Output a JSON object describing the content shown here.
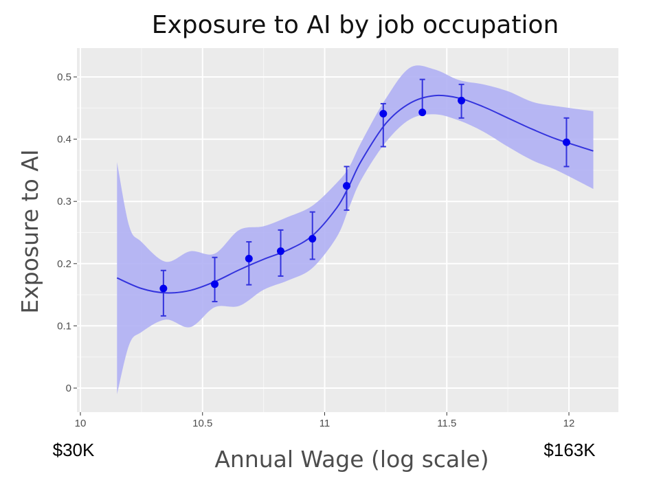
{
  "chart_data": {
    "type": "line",
    "title": "Exposure to AI by job occupation",
    "xlabel": "Annual Wage (log scale)",
    "ylabel": "Exposure to AI",
    "xlim": [
      10.0,
      12.2
    ],
    "ylim": [
      -0.04,
      0.55
    ],
    "x_ticks": [
      10,
      10.5,
      11,
      11.5,
      12
    ],
    "x_tick_labels": [
      "10",
      "10.5",
      "11",
      "11.5",
      "12"
    ],
    "y_ticks": [
      0,
      0.1,
      0.2,
      0.3,
      0.4,
      0.5
    ],
    "y_tick_labels": [
      "0",
      "0.1",
      "0.2",
      "0.3",
      "0.4",
      "0.5"
    ],
    "grid": true,
    "annotations": [
      {
        "text": "$30K",
        "x": 10.0
      },
      {
        "text": "$163K",
        "x": 12.0
      }
    ],
    "colors": {
      "points": "#0000ee",
      "line": "#3333dd",
      "band": "#b0b0f4",
      "panel": "#ebebeb",
      "grid": "#ffffff"
    },
    "points": [
      {
        "x": 10.34,
        "y": 0.16,
        "lo": 0.116,
        "hi": 0.189
      },
      {
        "x": 10.55,
        "y": 0.167,
        "lo": 0.139,
        "hi": 0.21
      },
      {
        "x": 10.69,
        "y": 0.208,
        "lo": 0.166,
        "hi": 0.235
      },
      {
        "x": 10.82,
        "y": 0.22,
        "lo": 0.18,
        "hi": 0.254
      },
      {
        "x": 10.95,
        "y": 0.24,
        "lo": 0.207,
        "hi": 0.283
      },
      {
        "x": 11.09,
        "y": 0.325,
        "lo": 0.286,
        "hi": 0.356
      },
      {
        "x": 11.24,
        "y": 0.441,
        "lo": 0.388,
        "hi": 0.457
      },
      {
        "x": 11.4,
        "y": 0.443,
        "lo": 0.443,
        "hi": 0.496
      },
      {
        "x": 11.56,
        "y": 0.462,
        "lo": 0.434,
        "hi": 0.488
      },
      {
        "x": 11.99,
        "y": 0.395,
        "lo": 0.356,
        "hi": 0.434
      }
    ],
    "smooth_fit": {
      "x": [
        10.15,
        10.25,
        10.35,
        10.45,
        10.55,
        10.65,
        10.75,
        10.85,
        10.95,
        11.05,
        11.1,
        11.15,
        11.25,
        11.35,
        11.45,
        11.55,
        11.65,
        11.75,
        11.85,
        11.95,
        12.1
      ],
      "y": [
        0.177,
        0.16,
        0.153,
        0.157,
        0.171,
        0.19,
        0.207,
        0.222,
        0.245,
        0.29,
        0.325,
        0.365,
        0.425,
        0.458,
        0.47,
        0.466,
        0.452,
        0.434,
        0.416,
        0.4,
        0.381
      ]
    },
    "ci_band": {
      "x": [
        10.15,
        10.2,
        10.25,
        10.35,
        10.45,
        10.55,
        10.65,
        10.75,
        10.85,
        10.95,
        11.05,
        11.1,
        11.15,
        11.25,
        11.35,
        11.45,
        11.55,
        11.65,
        11.75,
        11.85,
        11.95,
        12.1
      ],
      "lo": [
        -0.01,
        0.07,
        0.09,
        0.11,
        0.098,
        0.13,
        0.132,
        0.158,
        0.173,
        0.193,
        0.243,
        0.29,
        0.335,
        0.395,
        0.432,
        0.44,
        0.43,
        0.412,
        0.388,
        0.366,
        0.35,
        0.32
      ],
      "hi": [
        0.363,
        0.26,
        0.235,
        0.203,
        0.22,
        0.216,
        0.254,
        0.26,
        0.275,
        0.293,
        0.33,
        0.355,
        0.395,
        0.465,
        0.515,
        0.512,
        0.495,
        0.488,
        0.477,
        0.46,
        0.453,
        0.445
      ]
    }
  }
}
